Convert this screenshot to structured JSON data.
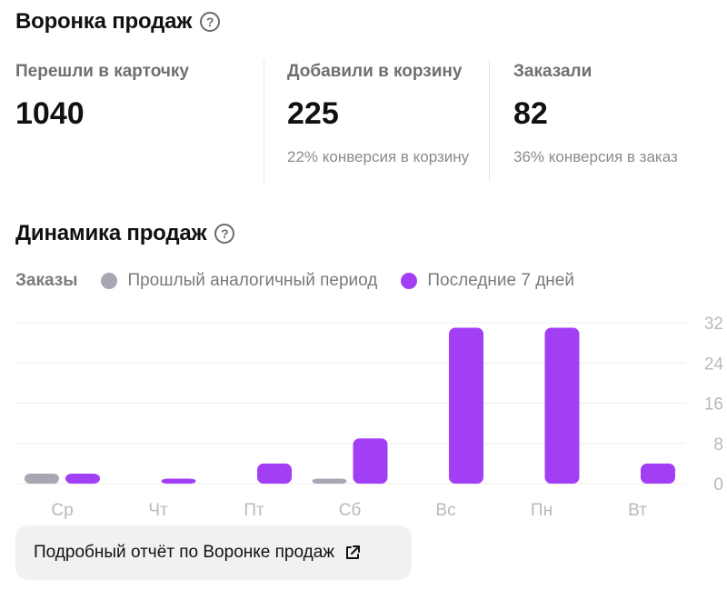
{
  "funnel": {
    "title": "Воронка продаж",
    "metrics": [
      {
        "label": "Перешли в карточку",
        "value": "1040",
        "note": ""
      },
      {
        "label": "Добавили в корзину",
        "value": "225",
        "note": "22% конверсия в корзину"
      },
      {
        "label": "Заказали",
        "value": "82",
        "note": "36% конверсия в заказ"
      }
    ]
  },
  "dynamics": {
    "title": "Динамика продаж",
    "legend_title": "Заказы",
    "legend": [
      {
        "label": "Прошлый аналогичный период",
        "color": "#a9a5b3"
      },
      {
        "label": "Последние 7 дней",
        "color": "#a23ff5"
      }
    ]
  },
  "chart_data": {
    "type": "bar",
    "categories": [
      "Ср",
      "Чт",
      "Пт",
      "Сб",
      "Вс",
      "Пн",
      "Вт"
    ],
    "series": [
      {
        "name": "Прошлый аналогичный период",
        "values": [
          2,
          0,
          0,
          1,
          0,
          0,
          0
        ],
        "color": "#a9a5b3"
      },
      {
        "name": "Последние 7 дней",
        "values": [
          2,
          1,
          4,
          9,
          31,
          31,
          4
        ],
        "color": "#a23ff5"
      }
    ],
    "yticks": [
      0,
      8,
      16,
      24,
      32
    ],
    "ylim": [
      0,
      32
    ],
    "y_axis_position": "right",
    "grid": true
  },
  "report_button": {
    "label": "Подробный отчёт по Воронке продаж",
    "icon": "external-link-icon"
  }
}
